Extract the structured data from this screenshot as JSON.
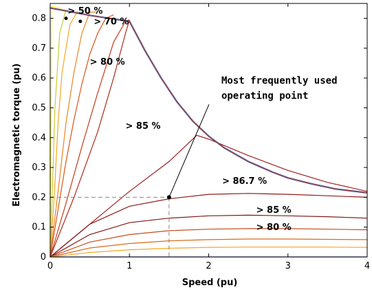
{
  "chart_data": {
    "type": "line",
    "xlabel": "Speed (pu)",
    "ylabel": "Electromagnetic torque (pu)",
    "xlim": [
      0,
      4
    ],
    "ylim": [
      0,
      0.85
    ],
    "xticks": [
      "0",
      "1",
      "2",
      "3",
      "4"
    ],
    "yticks": [
      "0",
      "0.1",
      "0.2",
      "0.3",
      "0.4",
      "0.5",
      "0.6",
      "0.7",
      "0.8"
    ],
    "grid": false,
    "envelope": {
      "x": [
        0.0,
        0.5,
        1.0,
        1.2,
        1.4,
        1.6,
        1.8,
        2.0,
        2.2,
        2.5,
        2.8,
        3.0,
        3.3,
        3.6,
        4.0
      ],
      "y": [
        0.835,
        0.81,
        0.79,
        0.69,
        0.6,
        0.52,
        0.455,
        0.405,
        0.365,
        0.32,
        0.285,
        0.265,
        0.245,
        0.228,
        0.215
      ]
    },
    "series": [
      {
        "color": "#ffff40",
        "x": [
          0,
          0.01,
          0.02,
          0.05,
          0.08,
          0.1,
          0.12,
          0.15
        ],
        "y": [
          0,
          0.4,
          0.84,
          0.84,
          0.837,
          0.836,
          0.835,
          0.834
        ]
      },
      {
        "color": "#c8cc33",
        "x": [
          0,
          0.03,
          0.06,
          0.12,
          0.2
        ],
        "y": [
          0,
          0.25,
          0.5,
          0.75,
          0.83
        ]
      },
      {
        "color": "#f5a623",
        "x": [
          0,
          0.05,
          0.1,
          0.15,
          0.25,
          0.35
        ],
        "y": [
          0,
          0.2,
          0.45,
          0.62,
          0.78,
          0.825
        ]
      },
      {
        "color": "#e8841e",
        "x": [
          0,
          0.1,
          0.2,
          0.3,
          0.4,
          0.5,
          0.6
        ],
        "y": [
          0,
          0.22,
          0.45,
          0.62,
          0.75,
          0.82,
          0.822
        ]
      },
      {
        "color": "#d9541a",
        "x": [
          0,
          0.1,
          0.2,
          0.3,
          0.4,
          0.5,
          0.6,
          0.7,
          0.8
        ],
        "y": [
          0,
          0.16,
          0.32,
          0.46,
          0.58,
          0.68,
          0.75,
          0.8,
          0.812
        ]
      },
      {
        "color": "#c43b1a",
        "x": [
          0,
          0.2,
          0.4,
          0.6,
          0.8,
          0.95,
          1.0
        ],
        "y": [
          0,
          0.18,
          0.37,
          0.55,
          0.72,
          0.79,
          0.795
        ]
      },
      {
        "color": "#b02a1a",
        "x": [
          0,
          0.3,
          0.6,
          0.8,
          0.95,
          1.0
        ],
        "y": [
          0,
          0.2,
          0.42,
          0.6,
          0.75,
          0.795
        ]
      },
      {
        "color": "#9f1f1f",
        "x": [
          0,
          0.5,
          1.0,
          1.5,
          1.85,
          2.0,
          2.5,
          3.0,
          3.5,
          4.0
        ],
        "y": [
          0,
          0.11,
          0.22,
          0.32,
          0.408,
          0.395,
          0.34,
          0.29,
          0.25,
          0.22
        ]
      },
      {
        "color": "#8f1a1a",
        "x": [
          0,
          0.5,
          1.0,
          1.5,
          2.0,
          2.5,
          3.0,
          3.5,
          4.0
        ],
        "y": [
          0,
          0.11,
          0.17,
          0.195,
          0.21,
          0.213,
          0.21,
          0.205,
          0.2
        ]
      },
      {
        "color": "#801818",
        "x": [
          0,
          0.5,
          1.0,
          1.5,
          2.0,
          2.5,
          3.0,
          3.5,
          4.0
        ],
        "y": [
          0,
          0.075,
          0.115,
          0.13,
          0.138,
          0.14,
          0.138,
          0.135,
          0.13
        ]
      },
      {
        "color": "#c44c1a",
        "x": [
          0,
          0.5,
          1.0,
          1.5,
          2.0,
          2.5,
          3.0,
          3.5,
          4.0
        ],
        "y": [
          0,
          0.05,
          0.075,
          0.088,
          0.093,
          0.095,
          0.095,
          0.093,
          0.091
        ]
      },
      {
        "color": "#d96a1a",
        "x": [
          0,
          0.5,
          1.0,
          1.5,
          2.0,
          2.5,
          3.0,
          3.5,
          4.0
        ],
        "y": [
          0,
          0.03,
          0.045,
          0.054,
          0.058,
          0.06,
          0.06,
          0.059,
          0.058
        ]
      },
      {
        "color": "#f5a623",
        "x": [
          0,
          0.5,
          1.0,
          1.5,
          2.0,
          2.5,
          3.0,
          3.5,
          4.0
        ],
        "y": [
          0,
          0.015,
          0.024,
          0.029,
          0.032,
          0.033,
          0.033,
          0.033,
          0.032
        ]
      },
      {
        "color": "#2b3fb0",
        "x": [
          0,
          4.0
        ],
        "y": [
          0,
          0
        ]
      }
    ],
    "operating_point": {
      "x": 1.5,
      "y": 0.2
    },
    "labels": [
      {
        "text": "> 50 %",
        "x": 0.22,
        "y": 0.815
      },
      {
        "text": "> 70 %",
        "x": 0.55,
        "y": 0.78
      },
      {
        "text": "> 80 %",
        "x": 0.5,
        "y": 0.645
      },
      {
        "text": "> 85 %",
        "x": 0.95,
        "y": 0.43
      },
      {
        "text": "> 86.7 %",
        "x": 2.17,
        "y": 0.245
      },
      {
        "text": "> 85 %",
        "x": 2.6,
        "y": 0.148
      },
      {
        "text": "> 80 %",
        "x": 2.6,
        "y": 0.09
      }
    ],
    "annotation": {
      "line1": "Most frequently used",
      "line2": "operating point",
      "x": 2.16,
      "y": 0.53
    }
  }
}
